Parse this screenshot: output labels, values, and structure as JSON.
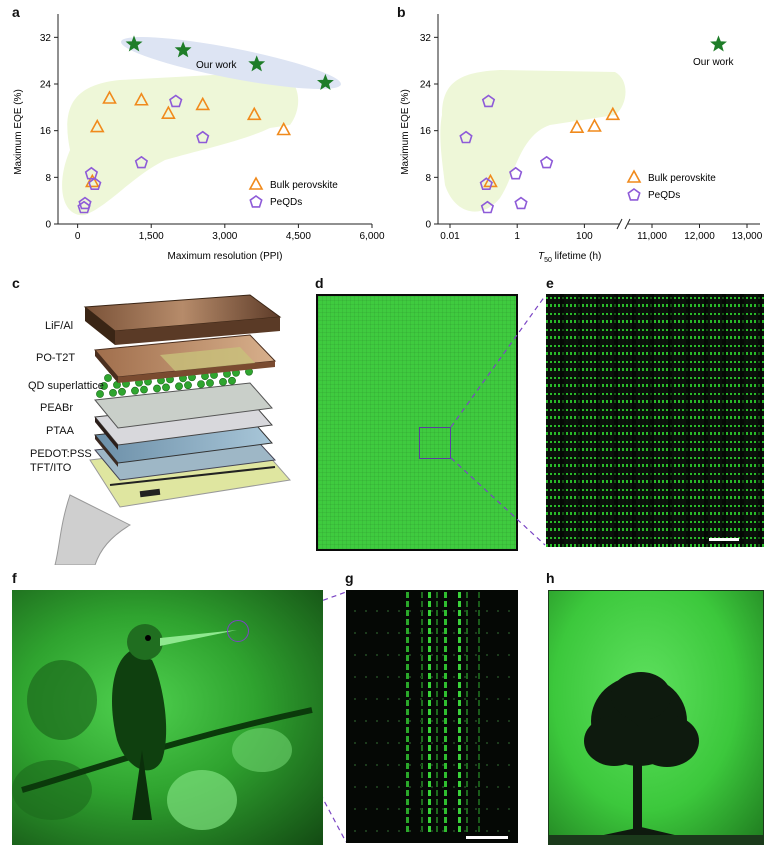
{
  "panels": {
    "a": "a",
    "b": "b",
    "c": "c",
    "d": "d",
    "e": "e",
    "f": "f",
    "g": "g",
    "h": "h"
  },
  "colors": {
    "triangle": "#f08a1c",
    "pentagon": "#8e5bd8",
    "star": "#1e7d28",
    "green_region": "#eef7d8",
    "blue_region": "#dde4f3",
    "display_green": "#3ec83e",
    "dashed_line": "#7b45c4"
  },
  "chart_data": [
    {
      "type": "scatter",
      "panel": "a",
      "xlabel": "Maximum resolution (PPI)",
      "ylabel": "Maximum EQE (%)",
      "xlim": [
        -400,
        6000
      ],
      "ylim": [
        0,
        36
      ],
      "xticks": [
        "0",
        "1,500",
        "3,000",
        "4,500",
        "6,000"
      ],
      "xtick_values": [
        0,
        1500,
        3000,
        4500,
        6000
      ],
      "yticks": [
        "0",
        "8",
        "16",
        "24",
        "32"
      ],
      "ytick_values": [
        0,
        8,
        16,
        24,
        32
      ],
      "annotation": "Our work",
      "legend": [
        "Bulk perovskite",
        "PeQDs"
      ],
      "series": [
        {
          "name": "Bulk perovskite",
          "marker": "triangle",
          "x": [
            300,
            400,
            650,
            1300,
            1850,
            2550,
            3600,
            4200
          ],
          "y": [
            7.3,
            16.7,
            21.6,
            21.3,
            19.0,
            20.5,
            18.8,
            16.2
          ]
        },
        {
          "name": "PeQDs",
          "marker": "pentagon",
          "x": [
            130,
            150,
            280,
            350,
            1300,
            2000,
            2550
          ],
          "y": [
            2.8,
            3.5,
            8.6,
            6.8,
            10.5,
            21.0,
            14.8
          ]
        },
        {
          "name": "Our work",
          "marker": "star",
          "x": [
            1150,
            2150,
            3650,
            5050
          ],
          "y": [
            30.8,
            29.8,
            27.4,
            24.2
          ]
        }
      ]
    },
    {
      "type": "scatter",
      "panel": "b",
      "xlabel_italic": "T",
      "xlabel_sub": "50",
      "xlabel_rest": " lifetime  (h)",
      "ylabel": "Maximum EQE (%)",
      "ylim": [
        0,
        36
      ],
      "x_scale": "log (0.01–1,000 h) with axis break, then linear (11,000–13,000 h)",
      "xticks": [
        "0.01",
        "1",
        "100",
        "11,000",
        "12,000",
        "13,000"
      ],
      "yticks": [
        "0",
        "8",
        "16",
        "24",
        "32"
      ],
      "ytick_values": [
        0,
        8,
        16,
        24,
        32
      ],
      "annotation": "Our work",
      "legend": [
        "Bulk perovskite",
        "PeQDs"
      ],
      "series": [
        {
          "name": "Bulk perovskite",
          "marker": "triangle",
          "x": [
            0.16,
            60,
            200,
            700
          ],
          "y": [
            7.3,
            16.6,
            16.8,
            18.8
          ]
        },
        {
          "name": "PeQDs",
          "marker": "pentagon",
          "x": [
            0.03,
            0.12,
            0.13,
            0.14,
            0.9,
            1.3,
            7.5
          ],
          "y": [
            14.8,
            6.8,
            2.8,
            21.0,
            8.6,
            3.5,
            10.5
          ]
        },
        {
          "name": "Our work",
          "marker": "star",
          "x": [
            12400
          ],
          "y": [
            30.8
          ]
        }
      ]
    }
  ],
  "device_layers": [
    "LiF/Al",
    "PO-T2T",
    "QD superlattice",
    "PEABr",
    "PTAA",
    "PEDOT:PSS",
    "TFT/ITO"
  ]
}
